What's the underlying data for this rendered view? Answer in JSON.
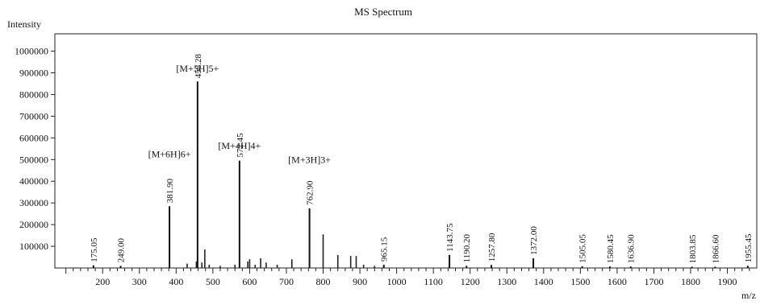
{
  "chart_data": {
    "type": "bar",
    "title": "MS Spectrum",
    "ylabel": "Intensity",
    "xlabel": "m/z",
    "xlim": [
      70,
      1980
    ],
    "ylim": [
      0,
      1080000
    ],
    "xticks": [
      200,
      300,
      400,
      500,
      600,
      700,
      800,
      900,
      1000,
      1100,
      1200,
      1300,
      1400,
      1500,
      1600,
      1700,
      1800,
      1900
    ],
    "yticks": [
      100000,
      200000,
      300000,
      400000,
      500000,
      600000,
      700000,
      800000,
      900000,
      1000000
    ],
    "yticklabels": [
      "100000",
      "200000",
      "300000",
      "400000",
      "500000",
      "600000",
      "700000",
      "800000",
      "900000",
      "1000000"
    ],
    "grid": false,
    "peaks": [
      {
        "mz": 175.05,
        "label": "175.05",
        "intensity": 12000
      },
      {
        "mz": 249.0,
        "label": "249.00",
        "intensity": 10000
      },
      {
        "mz": 381.9,
        "label": "381.90",
        "intensity": 285000
      },
      {
        "mz": 458.28,
        "label": "458.28",
        "intensity": 860000
      },
      {
        "mz": 572.45,
        "label": "572.45",
        "intensity": 495000
      },
      {
        "mz": 762.9,
        "label": "762.90",
        "intensity": 275000
      },
      {
        "mz": 965.15,
        "label": "965.15",
        "intensity": 15000
      },
      {
        "mz": 1143.75,
        "label": "1143.75",
        "intensity": 60000
      },
      {
        "mz": 1190.2,
        "label": "1190.20",
        "intensity": 10000
      },
      {
        "mz": 1257.8,
        "label": "1257.80",
        "intensity": 14000
      },
      {
        "mz": 1372.0,
        "label": "1372.00",
        "intensity": 45000
      },
      {
        "mz": 1505.05,
        "label": "1505.05",
        "intensity": 8000
      },
      {
        "mz": 1580.45,
        "label": "1580.45",
        "intensity": 7000
      },
      {
        "mz": 1636.9,
        "label": "1636.90",
        "intensity": 7000
      },
      {
        "mz": 1803.85,
        "label": "1803.85",
        "intensity": 6000
      },
      {
        "mz": 1866.6,
        "label": "1866.60",
        "intensity": 6000
      },
      {
        "mz": 1955.45,
        "label": "1955.45",
        "intensity": 10000
      }
    ],
    "minor_peaks": [
      {
        "mz": 430,
        "intensity": 20000
      },
      {
        "mz": 455,
        "intensity": 30000
      },
      {
        "mz": 470,
        "intensity": 25000
      },
      {
        "mz": 478,
        "intensity": 85000
      },
      {
        "mz": 490,
        "intensity": 15000
      },
      {
        "mz": 520,
        "intensity": 10000
      },
      {
        "mz": 560,
        "intensity": 15000
      },
      {
        "mz": 595,
        "intensity": 30000
      },
      {
        "mz": 600,
        "intensity": 40000
      },
      {
        "mz": 615,
        "intensity": 15000
      },
      {
        "mz": 630,
        "intensity": 45000
      },
      {
        "mz": 645,
        "intensity": 25000
      },
      {
        "mz": 675,
        "intensity": 15000
      },
      {
        "mz": 715,
        "intensity": 40000
      },
      {
        "mz": 800,
        "intensity": 155000
      },
      {
        "mz": 840,
        "intensity": 60000
      },
      {
        "mz": 875,
        "intensity": 55000
      },
      {
        "mz": 890,
        "intensity": 55000
      },
      {
        "mz": 910,
        "intensity": 15000
      },
      {
        "mz": 940,
        "intensity": 10000
      }
    ],
    "annotations": [
      {
        "text": "[M+6H]6+",
        "mz": 381.9,
        "y_value": 510000
      },
      {
        "text": "[M+5H]5+",
        "mz": 458.28,
        "y_value": 905000
      },
      {
        "text": "[M+4H]4+",
        "mz": 572.45,
        "y_value": 550000
      },
      {
        "text": "[M+3H]3+",
        "mz": 762.9,
        "y_value": 485000
      }
    ]
  }
}
